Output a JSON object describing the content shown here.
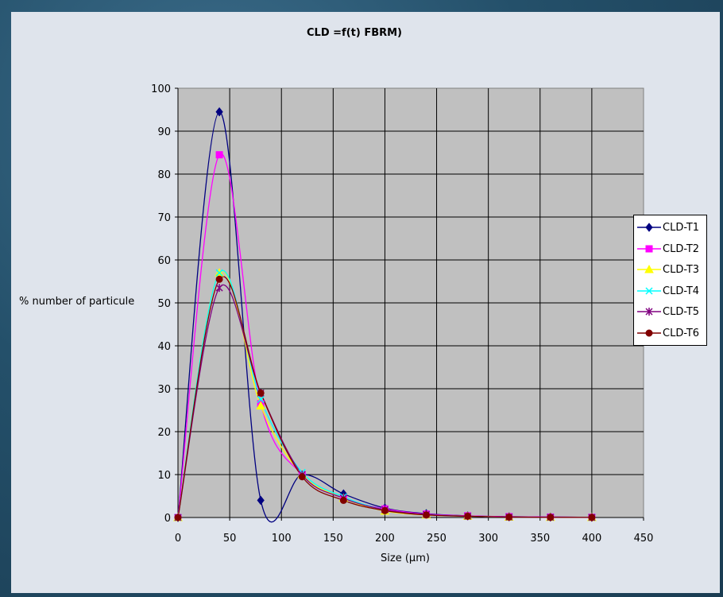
{
  "chart_data": {
    "type": "line",
    "title": "CLD =f(t) FBRM)",
    "xlabel": "Size (µm)",
    "ylabel": "% number of particule",
    "xlim": [
      0,
      450
    ],
    "ylim": [
      0,
      100
    ],
    "xticks": [
      "0",
      "50",
      "100",
      "150",
      "200",
      "250",
      "300",
      "350",
      "400",
      "450"
    ],
    "yticks": [
      "0",
      "10",
      "20",
      "30",
      "40",
      "50",
      "60",
      "70",
      "80",
      "90",
      "100"
    ],
    "grid": true,
    "legend_position": "right",
    "plot_background": "#c0c0c0",
    "series": [
      {
        "name": "CLD-T1",
        "color": "#000080",
        "marker": "diamond",
        "x": [
          0,
          40,
          80,
          120,
          160,
          200,
          240,
          280,
          320,
          360,
          400
        ],
        "y": [
          0,
          94.5,
          4,
          10,
          5.5,
          2.2,
          0.9,
          0.4,
          0.2,
          0.1,
          0.05
        ]
      },
      {
        "name": "CLD-T2",
        "color": "#ff00ff",
        "marker": "square",
        "x": [
          0,
          40,
          80,
          120,
          160,
          200,
          240,
          280,
          320,
          360,
          400
        ],
        "y": [
          0,
          84.5,
          26.5,
          10,
          4.5,
          2,
          0.8,
          0.4,
          0.2,
          0.1,
          0.05
        ]
      },
      {
        "name": "CLD-T3",
        "color": "#ffff00",
        "marker": "triangle",
        "x": [
          0,
          40,
          80,
          120,
          160,
          200,
          240,
          280,
          320,
          360,
          400
        ],
        "y": [
          0,
          57,
          26,
          10,
          4.5,
          1.5,
          0.6,
          0.3,
          0.1,
          0.05,
          0.02
        ]
      },
      {
        "name": "CLD-T4",
        "color": "#00ffff",
        "marker": "x",
        "x": [
          0,
          40,
          80,
          120,
          160,
          200,
          240,
          280,
          320,
          360,
          400
        ],
        "y": [
          0,
          57,
          27.5,
          10.5,
          4.8,
          1.8,
          0.7,
          0.3,
          0.1,
          0.05,
          0.02
        ]
      },
      {
        "name": "CLD-T5",
        "color": "#800080",
        "marker": "star",
        "x": [
          0,
          40,
          80,
          120,
          160,
          200,
          240,
          280,
          320,
          360,
          400
        ],
        "y": [
          0,
          53.5,
          29,
          10,
          4.5,
          1.8,
          0.7,
          0.3,
          0.1,
          0.05,
          0.02
        ]
      },
      {
        "name": "CLD-T6",
        "color": "#800000",
        "marker": "circle",
        "x": [
          0,
          40,
          80,
          120,
          160,
          200,
          240,
          280,
          320,
          360,
          400
        ],
        "y": [
          0,
          55.5,
          29,
          9.5,
          4,
          1.6,
          0.6,
          0.3,
          0.1,
          0.05,
          0.02
        ]
      }
    ]
  }
}
